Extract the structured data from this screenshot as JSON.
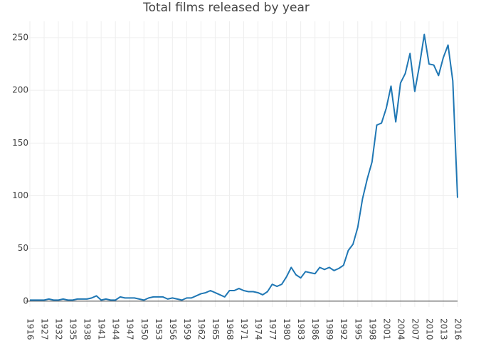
{
  "chart_data": {
    "type": "line",
    "title": "Total films released by year",
    "categories": [
      "1916",
      null,
      null,
      "1927",
      null,
      null,
      "1932",
      null,
      null,
      "1935",
      null,
      null,
      "1938",
      null,
      null,
      "1941",
      null,
      null,
      "1944",
      null,
      null,
      "1947",
      null,
      null,
      "1950",
      null,
      null,
      "1953",
      null,
      null,
      "1956",
      null,
      null,
      "1959",
      null,
      null,
      "1962",
      null,
      null,
      "1965",
      null,
      null,
      "1968",
      null,
      null,
      "1971",
      null,
      null,
      "1974",
      null,
      null,
      "1977",
      null,
      null,
      "1980",
      null,
      null,
      "1983",
      null,
      null,
      "1986",
      null,
      null,
      "1989",
      null,
      null,
      "1992",
      null,
      null,
      "1995",
      null,
      null,
      "1998",
      null,
      null,
      "2001",
      null,
      null,
      "2004",
      null,
      null,
      "2007",
      null,
      null,
      "2010",
      null,
      null,
      "2013",
      null,
      null,
      "2016"
    ],
    "values": [
      1,
      1,
      1,
      1,
      2,
      1,
      1,
      2,
      1,
      1,
      2,
      2,
      2,
      3,
      5,
      1,
      2,
      1,
      1,
      4,
      3,
      3,
      3,
      2,
      1,
      3,
      4,
      4,
      4,
      2,
      3,
      2,
      1,
      3,
      3,
      5,
      7,
      8,
      10,
      8,
      6,
      4,
      10,
      10,
      12,
      10,
      9,
      9,
      8,
      6,
      9,
      16,
      14,
      16,
      23,
      32,
      25,
      22,
      28,
      27,
      26,
      32,
      30,
      32,
      29,
      31,
      34,
      48,
      54,
      70,
      97,
      116,
      132,
      167,
      169,
      183,
      204,
      170,
      207,
      216,
      235,
      199,
      224,
      253,
      225,
      224,
      214,
      231,
      243,
      209,
      98
    ],
    "color": "#1f77b4",
    "ylim": [
      -5.5,
      265.5
    ],
    "yticks": [
      0,
      50,
      100,
      150,
      200,
      250
    ],
    "grid": true
  }
}
